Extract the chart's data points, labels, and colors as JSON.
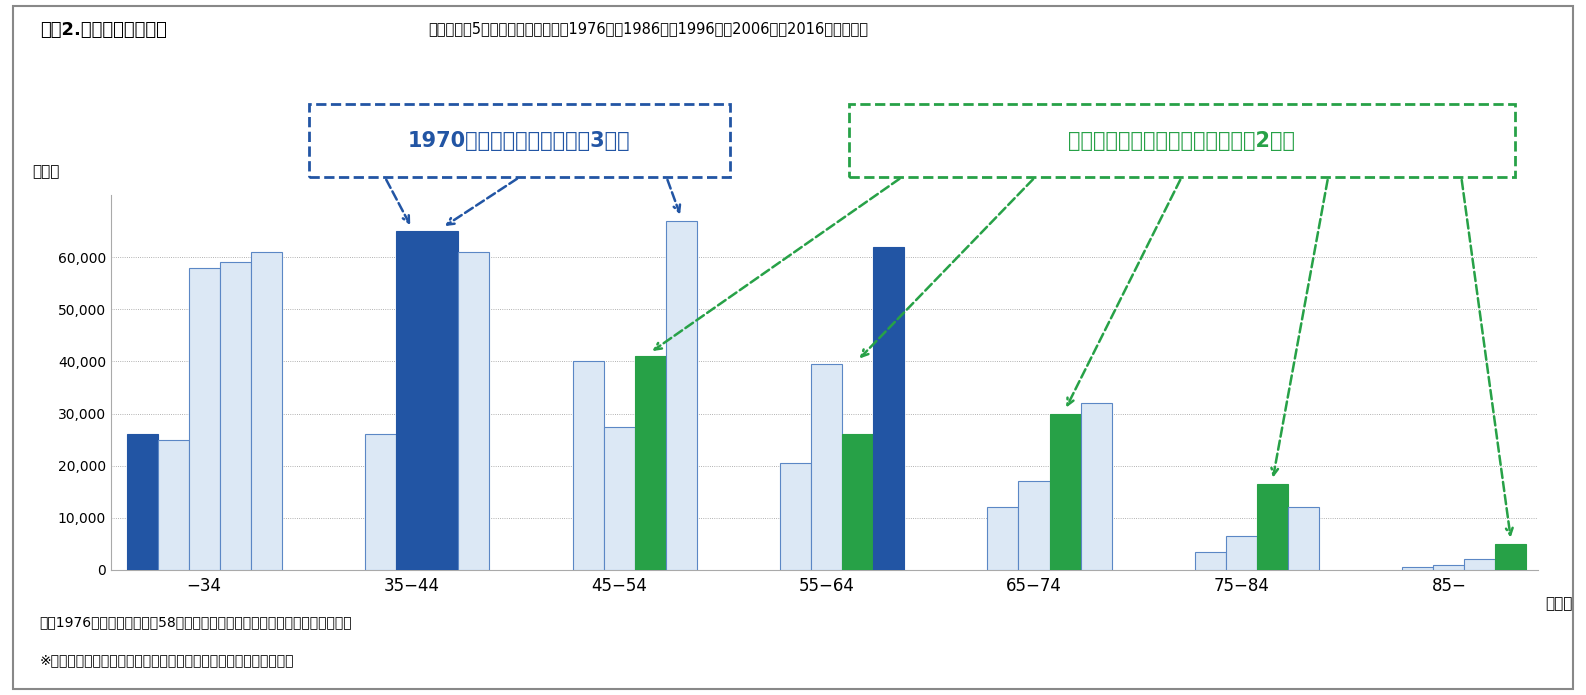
{
  "title": "図表2.　年齢層別医師数",
  "subtitle": "各年齢層の5本の棒は、左から順に1976年、1986年、1996年、2006年、2016年の医師数",
  "ylabel": "（人）",
  "xlabel": "（歳）",
  "categories": [
    "−34",
    "35−44",
    "45−54",
    "55−64",
    "65−74",
    "75−84",
    "85−"
  ],
  "years": [
    1976,
    1986,
    1996,
    2006,
    2016
  ],
  "data": [
    [
      26000,
      25000,
      58000,
      59000,
      61000
    ],
    [
      0,
      26000,
      65000,
      65000,
      61000
    ],
    [
      0,
      40000,
      27500,
      41000,
      67000
    ],
    [
      0,
      20500,
      39500,
      26000,
      62000
    ],
    [
      0,
      12000,
      17000,
      30000,
      32000
    ],
    [
      0,
      3500,
      6500,
      16500,
      12000
    ],
    [
      0,
      500,
      1000,
      2000,
      5000
    ]
  ],
  "bar_colors": [
    [
      "#2255a4",
      "#dce8f5",
      "#dce8f5",
      "#dce8f5",
      "#dce8f5"
    ],
    [
      "#dce8f5",
      "#dce8f5",
      "#2255a4",
      "#2255a4",
      "#dce8f5"
    ],
    [
      "#dce8f5",
      "#dce8f5",
      "#dce8f5",
      "#27a147",
      "#dce8f5"
    ],
    [
      "#dce8f5",
      "#dce8f5",
      "#dce8f5",
      "#27a147",
      "#2255a4"
    ],
    [
      "#dce8f5",
      "#dce8f5",
      "#dce8f5",
      "#27a147",
      "#dce8f5"
    ],
    [
      "#dce8f5",
      "#dce8f5",
      "#dce8f5",
      "#27a147",
      "#dce8f5"
    ],
    [
      "#dce8f5",
      "#dce8f5",
      "#dce8f5",
      "#dce8f5",
      "#27a147"
    ]
  ],
  "bar_edge_colors": [
    [
      "#2255a4",
      "#5b87c5",
      "#5b87c5",
      "#5b87c5",
      "#5b87c5"
    ],
    [
      "#5b87c5",
      "#5b87c5",
      "#2255a4",
      "#2255a4",
      "#5b87c5"
    ],
    [
      "#5b87c5",
      "#5b87c5",
      "#5b87c5",
      "#27a147",
      "#5b87c5"
    ],
    [
      "#5b87c5",
      "#5b87c5",
      "#5b87c5",
      "#27a147",
      "#2255a4"
    ],
    [
      "#5b87c5",
      "#5b87c5",
      "#5b87c5",
      "#27a147",
      "#5b87c5"
    ],
    [
      "#5b87c5",
      "#5b87c5",
      "#5b87c5",
      "#27a147",
      "#5b87c5"
    ],
    [
      "#5b87c5",
      "#5b87c5",
      "#5b87c5",
      "#5b87c5",
      "#27a147"
    ]
  ],
  "ylim": [
    0,
    72000
  ],
  "yticks": [
    0,
    10000,
    20000,
    30000,
    40000,
    50000,
    60000
  ],
  "background_color": "#ffffff",
  "annotation_blue_text": "1970年代の定員数増加（第3節）",
  "annotation_green_text": "戦争末期の医師の養成増加　（第2節）",
  "footnote1": "＊　1976年には年齢不詳が58人いるが、この人数はグラフに含めていない。",
  "footnote2": "※「医師・歯科医師・薬剤師調査」（厚生労働省）より、筆者作成",
  "blue_color": "#2255a4",
  "green_color": "#27a147",
  "border_color": "#888888"
}
